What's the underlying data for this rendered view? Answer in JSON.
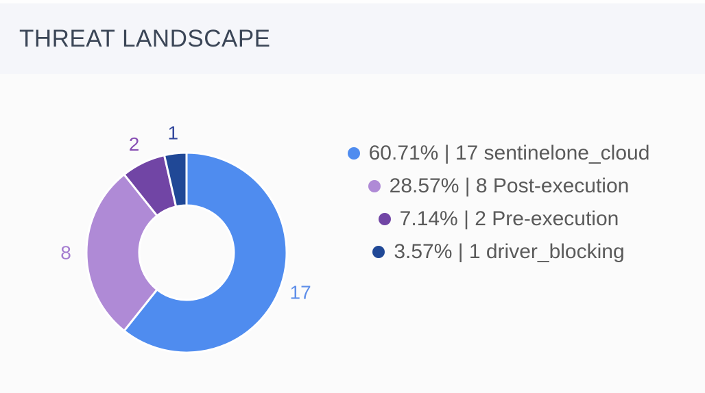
{
  "header": {
    "title": "THREAT LANDSCAPE"
  },
  "chart_data": {
    "type": "pie",
    "variant": "donut",
    "title": "THREAT LANDSCAPE",
    "total": 28,
    "start_angle_deg": 0,
    "direction": "clockwise",
    "legend_position": "right-center",
    "legend_text_color": "#5a5a5a",
    "slice_border_color": "#ffffff",
    "items": [
      {
        "name": "sentinelone_cloud",
        "value": 17,
        "percent": "60.71%",
        "legend_label": "60.71% | 17 sentinelone_cloud",
        "color": "#4f8cef",
        "label_color": "#5e8ee9"
      },
      {
        "name": "Post-execution",
        "value": 8,
        "percent": "28.57%",
        "legend_label": "28.57% | 8 Post-execution",
        "color": "#af8ad6",
        "label_color": "#a47cd0"
      },
      {
        "name": "Pre-execution",
        "value": 2,
        "percent": "7.14%",
        "legend_label": "7.14% | 2 Pre-execution",
        "color": "#7145a5",
        "label_color": "#8850b4"
      },
      {
        "name": "driver_blocking",
        "value": 1,
        "percent": "3.57%",
        "legend_label": "3.57% | 1 driver_blocking",
        "color": "#204896",
        "label_color": "#35499d"
      }
    ]
  }
}
